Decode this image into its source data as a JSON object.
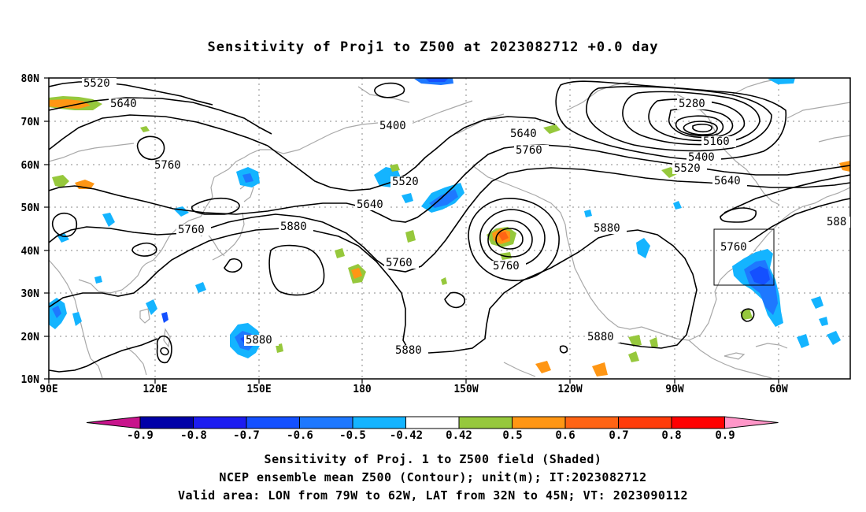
{
  "title": "Sensitivity of Proj1 to Z500 at 2023082712 +0.0 day",
  "map": {
    "lat_labels": [
      "80N",
      "70N",
      "60N",
      "50N",
      "40N",
      "30N",
      "20N",
      "10N"
    ],
    "lon_labels": [
      "90E",
      "120E",
      "150E",
      "180",
      "150W",
      "120W",
      "90W",
      "60W"
    ],
    "contour_labels": [
      "5520",
      "5640",
      "5400",
      "5640",
      "5760",
      "5280",
      "5160",
      "5400",
      "5520",
      "5640",
      "5760",
      "5520",
      "5640",
      "5760",
      "5880",
      "5760",
      "5760",
      "5880",
      "5760",
      "5880",
      "5880",
      "5880",
      "588"
    ]
  },
  "colorbar": {
    "ticks": [
      "-0.9",
      "-0.8",
      "-0.7",
      "-0.6",
      "-0.5",
      "-0.42",
      "0.42",
      "0.5",
      "0.6",
      "0.7",
      "0.8",
      "0.9"
    ],
    "colors": [
      "#0000a8",
      "#1c1cf0",
      "#1450ff",
      "#1e78ff",
      "#14b4ff",
      "#ffffff",
      "#96c83c",
      "#ff9614",
      "#ff6414",
      "#ff3c0a",
      "#ff0000"
    ],
    "low_end_color": "#c8148c",
    "high_end_color": "#ff96c8"
  },
  "caption": {
    "line1": "Sensitivity of Proj. 1 to Z500 field (Shaded)",
    "line2": "NCEP ensemble mean Z500 (Contour); unit(m); IT:2023082712",
    "line3": "Valid area: LON from 79W to 62W, LAT from 32N to 45N; VT: 2023090112"
  }
}
